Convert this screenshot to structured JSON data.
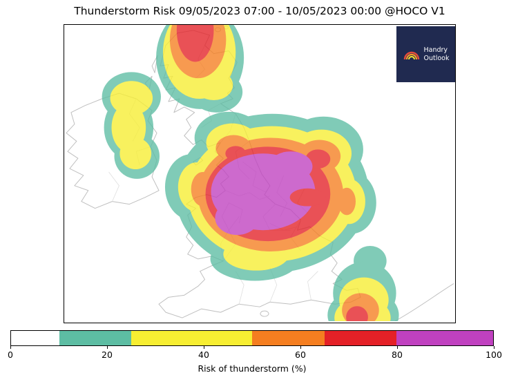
{
  "title": "Thunderstorm Risk 09/05/2023 07:00 - 10/05/2023 00:00 @HOCO V1",
  "logo": {
    "line1": "Handry",
    "line2": "Outlook",
    "background": "#202a50",
    "rainbow_colors": [
      "#e74c3c",
      "#f59e2a",
      "#f7e733"
    ]
  },
  "colorbar": {
    "label": "Risk of thunderstorm (%)",
    "min": 0,
    "max": 100,
    "ticks": [
      0,
      20,
      40,
      60,
      80,
      100
    ],
    "segments": [
      {
        "range": "0-10",
        "from": 0,
        "to": 10,
        "color": "#ffffff"
      },
      {
        "range": "10-25",
        "from": 10,
        "to": 25,
        "color": "#5dbda3"
      },
      {
        "range": "25-50",
        "from": 25,
        "to": 50,
        "color": "#f7ee32"
      },
      {
        "range": "50-65",
        "from": 50,
        "to": 65,
        "color": "#f57e20"
      },
      {
        "range": "65-80",
        "from": 65,
        "to": 80,
        "color": "#e42127"
      },
      {
        "range": "80-100",
        "from": 80,
        "to": 100,
        "color": "#c041c0"
      }
    ]
  },
  "map": {
    "contour_alpha": 0.78,
    "regions": [
      {
        "position": "north (top of map, clipped by frame)",
        "peak_band": "65-80"
      },
      {
        "position": "west (left of map)",
        "peak_band": "25-50"
      },
      {
        "position": "central (largest area)",
        "peak_band": "80-100"
      },
      {
        "position": "south-east (bottom right, clipped)",
        "peak_band": "65-80"
      }
    ]
  }
}
